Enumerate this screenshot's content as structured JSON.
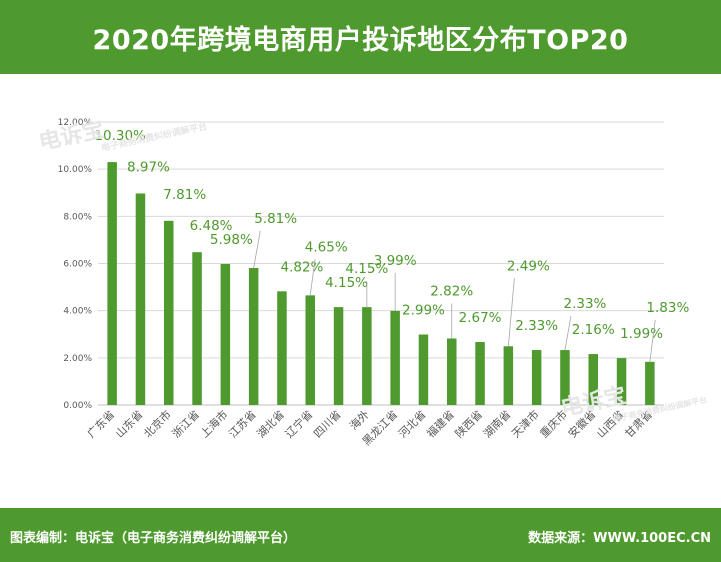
{
  "header": {
    "title": "2020年跨境电商用户投诉地区分布TOP20"
  },
  "watermark": {
    "text": "电诉宝",
    "subtext": "电子商务消费纠纷调解平台"
  },
  "footer": {
    "left": "图表编制：电诉宝（电子商务消费纠纷调解平台）",
    "right": "数据来源：WWW.100EC.CN"
  },
  "colors": {
    "bar": "#4e9a2e",
    "header": "#4e9a2e",
    "label": "#4e9a2e",
    "grid": "#d9d9d9",
    "axis_text": "#595959"
  },
  "chart_data": {
    "type": "bar",
    "title": "",
    "xlabel": "",
    "ylabel": "",
    "ylim": [
      0,
      12
    ],
    "yticks": [
      "0.00%",
      "2.00%",
      "4.00%",
      "6.00%",
      "8.00%",
      "10.00%",
      "12.00%"
    ],
    "grid": true,
    "categories": [
      "广东省",
      "山东省",
      "北京市",
      "浙江省",
      "上海市",
      "江苏省",
      "湖北省",
      "辽宁省",
      "四川省",
      "海外",
      "黑龙江省",
      "河北省",
      "福建省",
      "陕西省",
      "湖南省",
      "天津市",
      "重庆市",
      "安徽省",
      "山西省",
      "甘肃省"
    ],
    "values": [
      10.3,
      8.97,
      7.81,
      6.48,
      5.98,
      5.81,
      4.82,
      4.65,
      4.15,
      4.15,
      3.99,
      2.99,
      2.82,
      2.67,
      2.49,
      2.33,
      2.33,
      2.16,
      1.99,
      1.83
    ],
    "data_labels": [
      "10.30%",
      "8.97%",
      "7.81%",
      "6.48%",
      "5.98%",
      "5.81%",
      "4.82%",
      "4.65%",
      "4.15%",
      "4.15%",
      "3.99%",
      "2.99%",
      "2.82%",
      "2.67%",
      "2.49%",
      "2.33%",
      "2.33%",
      "2.16%",
      "1.99%",
      "1.83%"
    ]
  }
}
